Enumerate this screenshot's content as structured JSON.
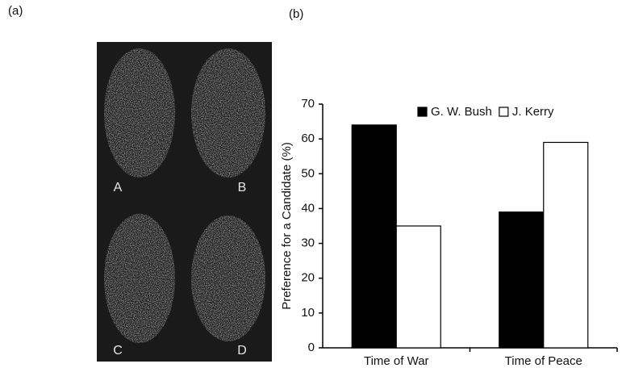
{
  "panel_a": {
    "label": "(a)",
    "faces": [
      "A",
      "B",
      "C",
      "D"
    ]
  },
  "chart_data": {
    "type": "bar",
    "panel_label": "(b)",
    "ylabel": "Preference for a Candidate (%)",
    "categories": [
      "Time of War",
      "Time of Peace"
    ],
    "series": [
      {
        "name": "G. W. Bush",
        "color": "#000000",
        "values": [
          64,
          39
        ]
      },
      {
        "name": "J. Kerry",
        "color": "#ffffff",
        "values": [
          35,
          59
        ]
      }
    ],
    "ylim": [
      0,
      70
    ],
    "yticks": [
      0,
      10,
      20,
      30,
      40,
      50,
      60,
      70
    ],
    "legend": "top"
  }
}
